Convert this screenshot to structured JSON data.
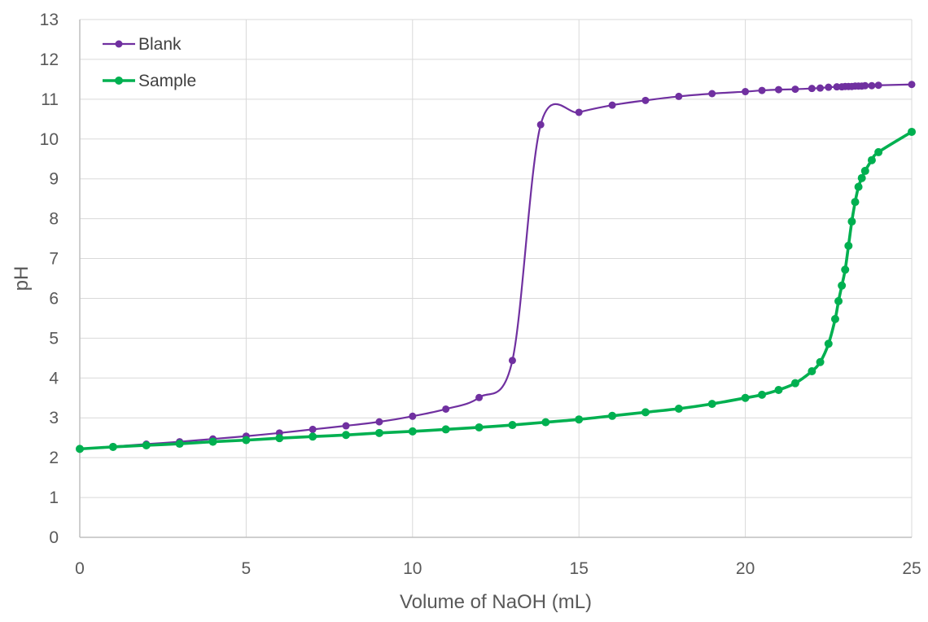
{
  "chart_data": {
    "type": "scatter",
    "title": "",
    "xlabel": "Volume of NaOH (mL)",
    "ylabel": "pH",
    "xlim": [
      0,
      25
    ],
    "ylim": [
      0,
      13
    ],
    "x_ticks": [
      0,
      5,
      10,
      15,
      20,
      25
    ],
    "y_ticks": [
      0,
      1,
      2,
      3,
      4,
      5,
      6,
      7,
      8,
      9,
      10,
      11,
      12,
      13
    ],
    "grid": true,
    "legend_position": "top-left",
    "series": [
      {
        "name": "Blank",
        "color": "#7030a0",
        "points": [
          [
            0,
            2.22
          ],
          [
            1,
            2.28
          ],
          [
            2,
            2.34
          ],
          [
            3,
            2.4
          ],
          [
            4,
            2.47
          ],
          [
            5,
            2.54
          ],
          [
            6,
            2.62
          ],
          [
            7,
            2.71
          ],
          [
            8,
            2.8
          ],
          [
            9,
            2.9
          ],
          [
            10,
            3.04
          ],
          [
            11,
            3.22
          ],
          [
            12,
            3.51
          ],
          [
            13,
            4.44
          ],
          [
            13.85,
            10.36
          ],
          [
            15,
            10.67
          ],
          [
            16,
            10.85
          ],
          [
            17,
            10.97
          ],
          [
            18,
            11.07
          ],
          [
            19,
            11.14
          ],
          [
            20,
            11.19
          ],
          [
            20.5,
            11.22
          ],
          [
            21,
            11.24
          ],
          [
            21.5,
            11.25
          ],
          [
            22,
            11.27
          ],
          [
            22.25,
            11.28
          ],
          [
            22.5,
            11.3
          ],
          [
            22.75,
            11.31
          ],
          [
            22.9,
            11.31
          ],
          [
            23,
            11.32
          ],
          [
            23.1,
            11.32
          ],
          [
            23.2,
            11.32
          ],
          [
            23.3,
            11.33
          ],
          [
            23.4,
            11.33
          ],
          [
            23.5,
            11.33
          ],
          [
            23.6,
            11.34
          ],
          [
            23.8,
            11.34
          ],
          [
            24,
            11.35
          ],
          [
            25,
            11.37
          ]
        ]
      },
      {
        "name": "Sample",
        "color": "#00b050",
        "points": [
          [
            0,
            2.22
          ],
          [
            1,
            2.27
          ],
          [
            2,
            2.31
          ],
          [
            3,
            2.35
          ],
          [
            4,
            2.4
          ],
          [
            5,
            2.44
          ],
          [
            6,
            2.49
          ],
          [
            7,
            2.53
          ],
          [
            8,
            2.57
          ],
          [
            9,
            2.62
          ],
          [
            10,
            2.66
          ],
          [
            11,
            2.71
          ],
          [
            12,
            2.76
          ],
          [
            13,
            2.82
          ],
          [
            14,
            2.89
          ],
          [
            15,
            2.96
          ],
          [
            16,
            3.05
          ],
          [
            17,
            3.14
          ],
          [
            18,
            3.23
          ],
          [
            19,
            3.35
          ],
          [
            20,
            3.5
          ],
          [
            20.5,
            3.58
          ],
          [
            21,
            3.7
          ],
          [
            21.5,
            3.87
          ],
          [
            22,
            4.17
          ],
          [
            22.25,
            4.4
          ],
          [
            22.5,
            4.86
          ],
          [
            22.7,
            5.48
          ],
          [
            22.8,
            5.93
          ],
          [
            22.9,
            6.32
          ],
          [
            23,
            6.72
          ],
          [
            23.1,
            7.32
          ],
          [
            23.2,
            7.93
          ],
          [
            23.3,
            8.42
          ],
          [
            23.4,
            8.8
          ],
          [
            23.5,
            9.02
          ],
          [
            23.6,
            9.2
          ],
          [
            23.8,
            9.47
          ],
          [
            24,
            9.67
          ],
          [
            25,
            10.18
          ]
        ]
      }
    ]
  }
}
